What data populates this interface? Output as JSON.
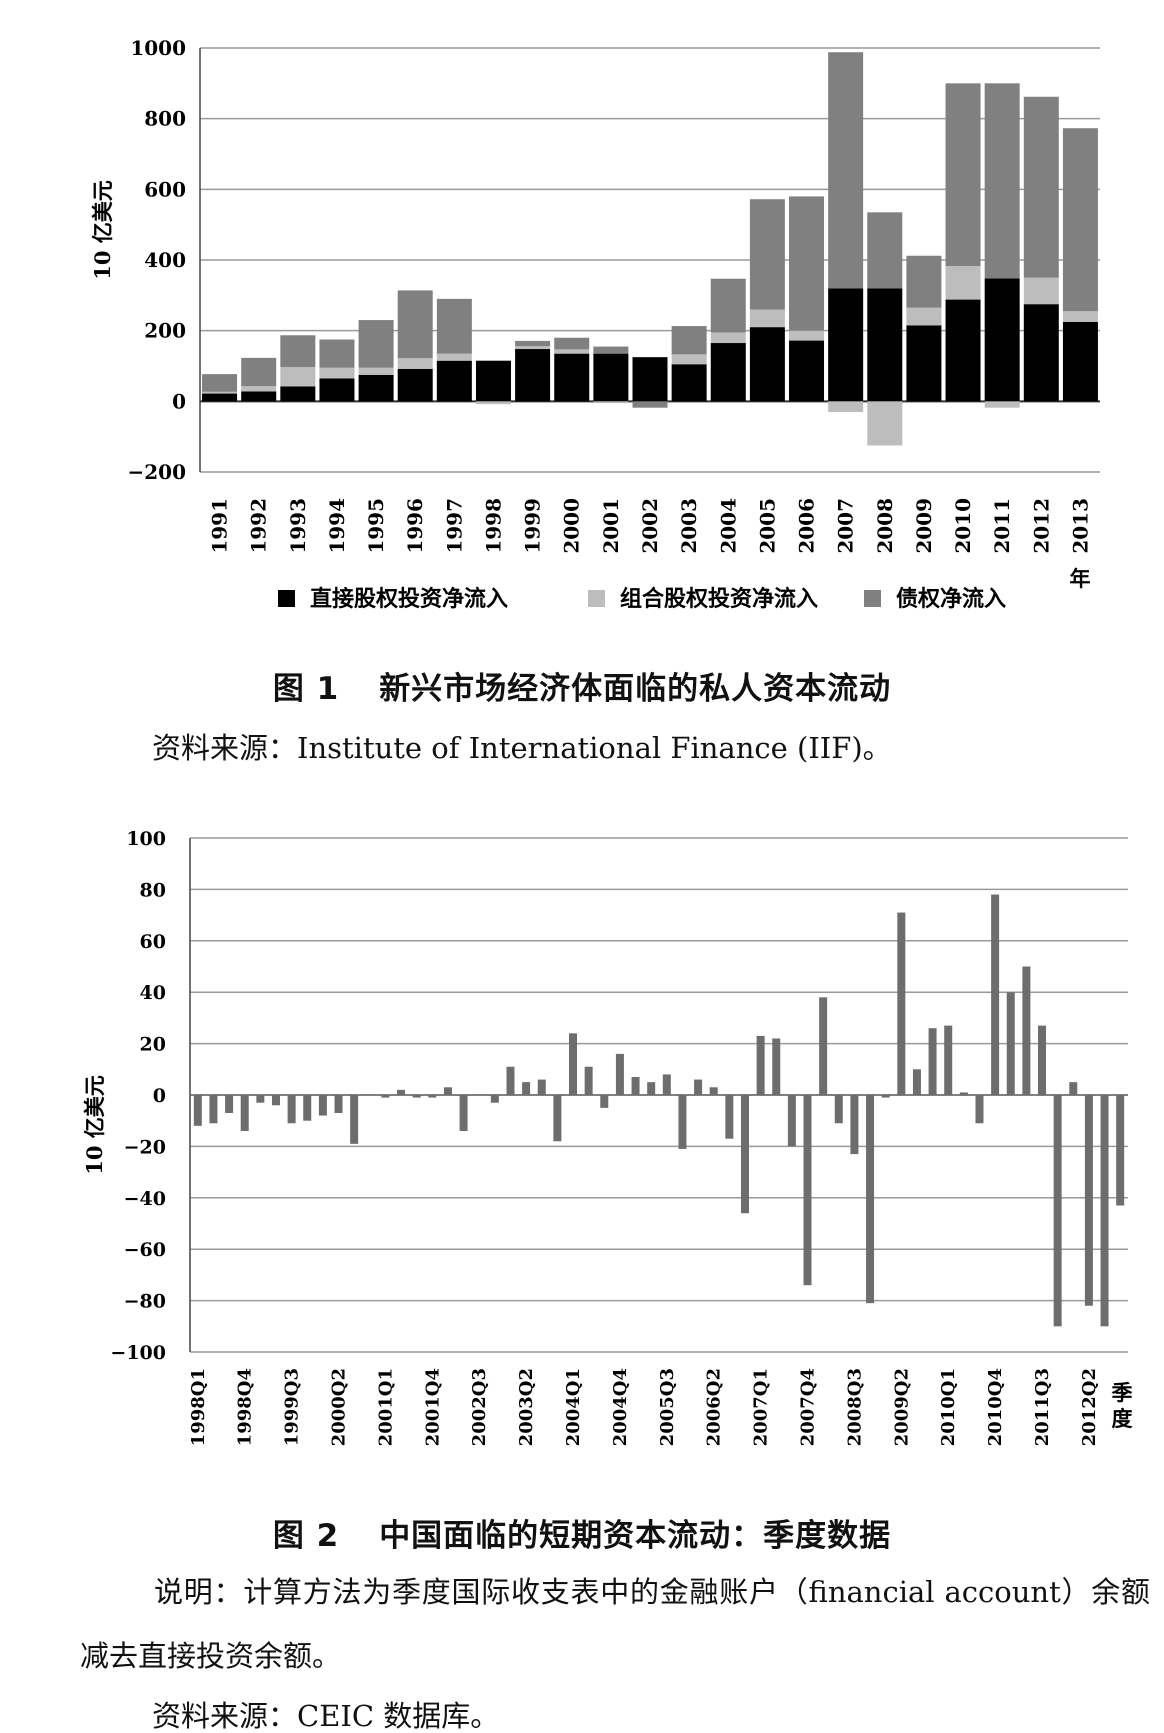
{
  "figures": [
    {
      "caption_number": "图 1",
      "caption_title": "新兴市场经济体面临的私人资本流动",
      "source": "资料来源：Institute of International Finance (IIF)。"
    },
    {
      "caption_number": "图 2",
      "caption_title": "中国面临的短期资本流动：季度数据",
      "note": "说明：计算方法为季度国际收支表中的金融账户（financial account）余额减去直接投资余额。",
      "source": "资料来源：CEIC 数据库。"
    }
  ],
  "chart_data": [
    {
      "type": "bar",
      "stacked": true,
      "ylabel": "10 亿美元",
      "xlabel": "年",
      "ylim": [
        -200,
        1000
      ],
      "yticks": [
        -200,
        0,
        200,
        400,
        600,
        800,
        1000
      ],
      "grid": true,
      "legend_position": "bottom",
      "categories": [
        "1991",
        "1992",
        "1993",
        "1994",
        "1995",
        "1996",
        "1997",
        "1998",
        "1999",
        "2000",
        "2001",
        "2002",
        "2003",
        "2004",
        "2005",
        "2006",
        "2007",
        "2008",
        "2009",
        "2010",
        "2011",
        "2012",
        "2013"
      ],
      "series": [
        {
          "name": "直接股权投资净流入",
          "color": "#000000",
          "values": [
            22,
            28,
            42,
            65,
            75,
            92,
            115,
            115,
            148,
            135,
            135,
            125,
            105,
            165,
            210,
            172,
            320,
            320,
            215,
            288,
            348,
            275,
            225
          ]
        },
        {
          "name": "组合股权投资净流入",
          "color": "#bdbdbd",
          "values": [
            5,
            15,
            55,
            30,
            20,
            30,
            20,
            -8,
            8,
            12,
            -5,
            0,
            28,
            30,
            50,
            28,
            -30,
            -125,
            50,
            95,
            -18,
            75,
            30
          ]
        },
        {
          "name": "债权净流入",
          "color": "#808080",
          "values": [
            50,
            80,
            90,
            80,
            135,
            192,
            155,
            0,
            15,
            33,
            20,
            -18,
            80,
            152,
            312,
            380,
            668,
            215,
            147,
            517,
            552,
            512,
            518
          ]
        }
      ]
    },
    {
      "type": "bar",
      "ylabel": "10 亿美元",
      "xlabel": "季度",
      "ylim": [
        -100,
        100
      ],
      "yticks": [
        -100,
        -80,
        -60,
        -40,
        -20,
        0,
        20,
        40,
        60,
        80,
        100
      ],
      "grid": true,
      "color": "#6d6d6d",
      "x_tick_labels": [
        "1998Q1",
        "1998Q4",
        "1999Q3",
        "2000Q2",
        "2001Q1",
        "2001Q4",
        "2002Q3",
        "2003Q2",
        "2004Q1",
        "2004Q4",
        "2005Q3",
        "2006Q2",
        "2007Q1",
        "2007Q4",
        "2008Q3",
        "2009Q2",
        "2010Q1",
        "2010Q4",
        "2011Q3",
        "2012Q2"
      ],
      "categories": [
        "1998Q1",
        "1998Q2",
        "1998Q3",
        "1998Q4",
        "1999Q1",
        "1999Q2",
        "1999Q3",
        "1999Q4",
        "2000Q1",
        "2000Q2",
        "2000Q3",
        "2000Q4",
        "2001Q1",
        "2001Q2",
        "2001Q3",
        "2001Q4",
        "2002Q1",
        "2002Q2",
        "2002Q3",
        "2002Q4",
        "2003Q1",
        "2003Q2",
        "2003Q3",
        "2003Q4",
        "2004Q1",
        "2004Q2",
        "2004Q3",
        "2004Q4",
        "2005Q1",
        "2005Q2",
        "2005Q3",
        "2005Q4",
        "2006Q1",
        "2006Q2",
        "2006Q3",
        "2006Q4",
        "2007Q1",
        "2007Q2",
        "2007Q3",
        "2007Q4",
        "2008Q1",
        "2008Q2",
        "2008Q3",
        "2008Q4",
        "2009Q1",
        "2009Q2",
        "2009Q3",
        "2009Q4",
        "2010Q1",
        "2010Q2",
        "2010Q3",
        "2010Q4",
        "2011Q1",
        "2011Q2",
        "2011Q3",
        "2011Q4",
        "2012Q1",
        "2012Q2",
        "2012Q3",
        "2012Q4"
      ],
      "values": [
        -12,
        -11,
        -7,
        -14,
        -3,
        -4,
        -11,
        -10,
        -8,
        -7,
        -19,
        0,
        -1,
        2,
        -1,
        -1,
        3,
        -14,
        0,
        -3,
        11,
        5,
        6,
        -18,
        24,
        11,
        -5,
        16,
        7,
        5,
        8,
        -21,
        6,
        3,
        -17,
        -46,
        23,
        22,
        -20,
        -74,
        38,
        -11,
        -23,
        -81,
        -1,
        71,
        10,
        26,
        27,
        1,
        -11,
        78,
        40,
        50,
        27,
        -90,
        5,
        -82,
        -90,
        -43
      ]
    }
  ]
}
